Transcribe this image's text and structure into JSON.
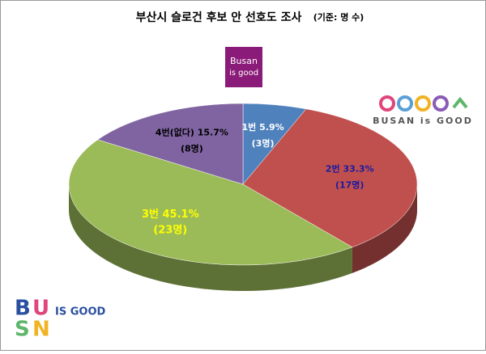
{
  "chart_data": {
    "type": "pie",
    "title": "부산시 슬로건 후보 안 선호도 조사",
    "subtitle": "(기준: 명 수)",
    "categories": [
      "1번",
      "2번",
      "3번",
      "4번(없다)"
    ],
    "values": [
      5.9,
      33.3,
      45.1,
      15.7
    ],
    "value_labels": [
      "5.9%",
      "33.3%",
      "45.1%",
      "15.7%"
    ],
    "counts": [
      3,
      17,
      23,
      8
    ],
    "count_labels": [
      "(3명)",
      "(17명)",
      "(23명)",
      "(8명)"
    ],
    "colors": [
      "#4f81bd",
      "#c0504d",
      "#9bbb59",
      "#8064a2"
    ],
    "label_colors": [
      "#ffffff",
      "#1a1aa0",
      "#ffff00",
      "#000000"
    ]
  },
  "logos": {
    "center_top": [
      "Busan",
      "is good"
    ],
    "right": "BUSAN is GOOD",
    "bottom_left": "IS GOOD"
  }
}
